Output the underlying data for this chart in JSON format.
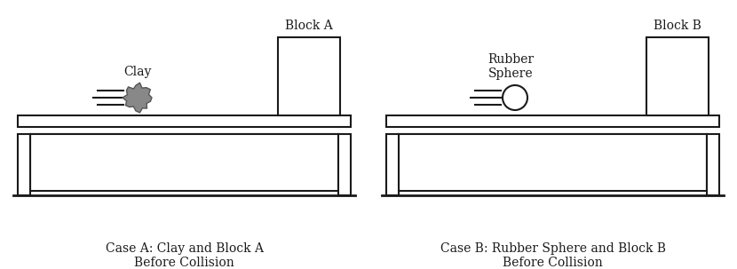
{
  "bg_color": "#ffffff",
  "line_color": "#1a1a1a",
  "clay_color": "#888888",
  "clay_edge_color": "#555555",
  "figsize": [
    8.3,
    3.03
  ],
  "dpi": 100,
  "caption_a": "Case A: Clay and Block A\nBefore Collision",
  "caption_b": "Case B: Rubber Sphere and Block B\nBefore Collision",
  "label_clay": "Clay",
  "label_block_a": "Block A",
  "label_rubber": "Rubber\nSphere",
  "label_block_b": "Block B",
  "caption_fontsize": 10,
  "label_fontsize": 10
}
